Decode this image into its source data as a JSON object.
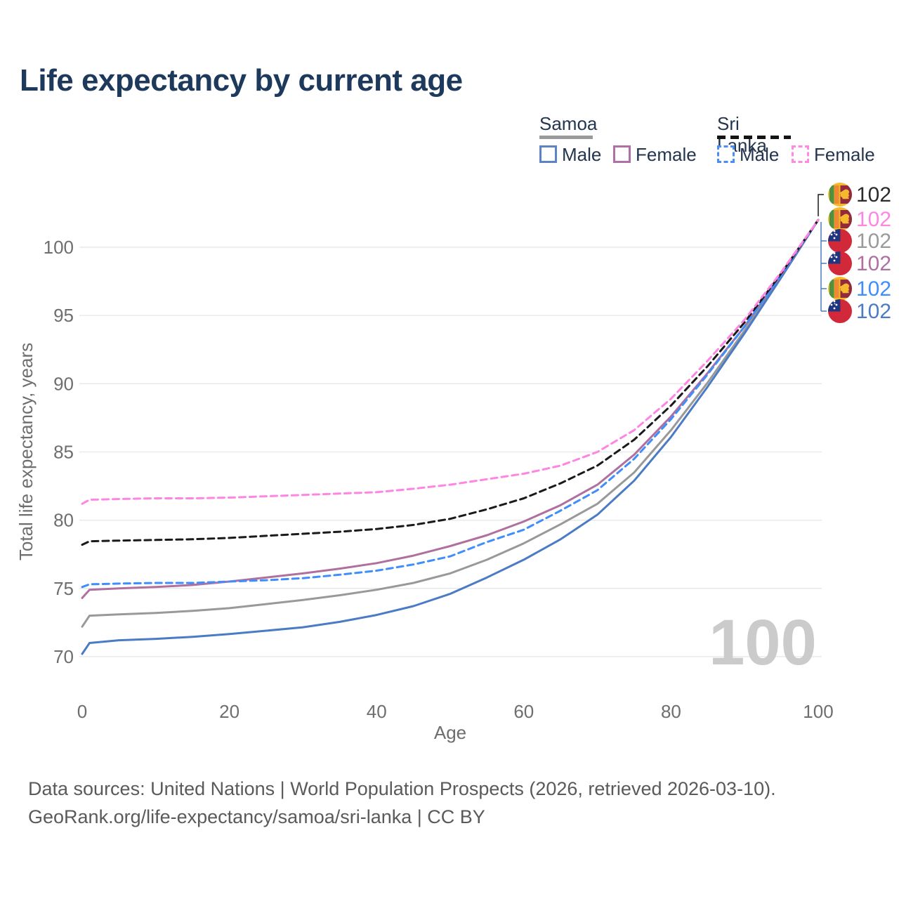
{
  "header": {
    "title": "Life expectancy by current age"
  },
  "legend": {
    "samoa": {
      "label": "Samoa",
      "male_label": "Male",
      "female_label": "Female"
    },
    "sri_lanka": {
      "label": "Sri Lanka",
      "male_label": "Male",
      "female_label": "Female"
    }
  },
  "colors": {
    "title": "#1d3a5c",
    "axis_text": "#6e6e6e",
    "grid": "#e9e9e9",
    "watermark": "#cbcbcb",
    "samoa_male": "#4a7bc4",
    "samoa_female": "#b0709f",
    "samoa_all": "#999999",
    "sri_lanka_male": "#3f8efc",
    "sri_lanka_female": "#ff85e3",
    "sri_lanka_all": "#1a1a1a"
  },
  "chart_data": {
    "type": "line",
    "title": "Life expectancy by current age",
    "xlabel": "Age",
    "ylabel": "Total life expectancy, years",
    "xlim": [
      0,
      100
    ],
    "ylim": [
      70,
      102
    ],
    "xticks": [
      0,
      20,
      40,
      60,
      80,
      100
    ],
    "yticks": [
      70,
      75,
      80,
      85,
      90,
      95,
      100
    ],
    "grid": true,
    "legend_position": "top-right",
    "watermark": "100",
    "ages": [
      0,
      1,
      5,
      10,
      15,
      20,
      25,
      30,
      35,
      40,
      45,
      50,
      55,
      60,
      65,
      70,
      75,
      80,
      85,
      90,
      95,
      100
    ],
    "series": [
      {
        "id": "samoa-all",
        "name": "Samoa (both sexes)",
        "country": "Samoa",
        "sex": "All",
        "style": "solid",
        "color": "#999999",
        "values": [
          72.2,
          73.0,
          73.1,
          73.2,
          73.35,
          73.55,
          73.85,
          74.15,
          74.5,
          74.9,
          75.4,
          76.1,
          77.1,
          78.3,
          79.7,
          81.2,
          83.5,
          86.6,
          90.1,
          93.9,
          97.9,
          102
        ]
      },
      {
        "id": "samoa-male",
        "name": "Samoa Male",
        "country": "Samoa",
        "sex": "Male",
        "style": "solid",
        "color": "#4a7bc4",
        "values": [
          70.2,
          71.0,
          71.2,
          71.3,
          71.45,
          71.65,
          71.9,
          72.15,
          72.55,
          73.05,
          73.7,
          74.6,
          75.8,
          77.1,
          78.6,
          80.4,
          82.9,
          86.1,
          89.8,
          93.7,
          97.8,
          102
        ]
      },
      {
        "id": "samoa-female",
        "name": "Samoa Female",
        "country": "Samoa",
        "sex": "Female",
        "style": "solid",
        "color": "#b0709f",
        "values": [
          74.3,
          74.9,
          75.0,
          75.1,
          75.25,
          75.5,
          75.8,
          76.1,
          76.45,
          76.85,
          77.4,
          78.1,
          78.9,
          79.9,
          81.1,
          82.6,
          84.8,
          87.6,
          90.8,
          94.2,
          98.0,
          102
        ]
      },
      {
        "id": "sri-lanka-male",
        "name": "Sri Lanka Male",
        "country": "Sri Lanka",
        "sex": "Male",
        "style": "dashed",
        "color": "#3f8efc",
        "values": [
          75.1,
          75.3,
          75.35,
          75.4,
          75.4,
          75.5,
          75.6,
          75.75,
          76.0,
          76.3,
          76.75,
          77.35,
          78.4,
          79.3,
          80.7,
          82.2,
          84.5,
          87.4,
          90.7,
          94.2,
          98.0,
          102
        ]
      },
      {
        "id": "sri-lanka-all",
        "name": "Sri Lanka (both sexes)",
        "country": "Sri Lanka",
        "sex": "All",
        "style": "dashed",
        "color": "#1a1a1a",
        "values": [
          78.2,
          78.45,
          78.5,
          78.55,
          78.6,
          78.7,
          78.85,
          79.0,
          79.15,
          79.35,
          79.65,
          80.1,
          80.8,
          81.6,
          82.7,
          84.0,
          85.9,
          88.4,
          91.3,
          94.5,
          98.1,
          102
        ]
      },
      {
        "id": "sri-lanka-female",
        "name": "Sri Lanka Female",
        "country": "Sri Lanka",
        "sex": "Female",
        "style": "dashed",
        "color": "#ff85e3",
        "values": [
          81.2,
          81.5,
          81.55,
          81.6,
          81.6,
          81.65,
          81.75,
          81.85,
          81.95,
          82.05,
          82.3,
          82.6,
          83.0,
          83.4,
          84.0,
          85.0,
          86.6,
          88.9,
          91.7,
          94.7,
          98.2,
          102
        ]
      }
    ],
    "end_labels": [
      {
        "flag": "sri-lanka",
        "text": "102",
        "color": "#2b2b2b"
      },
      {
        "flag": "sri-lanka",
        "text": "102",
        "color": "#ff85e3"
      },
      {
        "flag": "samoa",
        "text": "102",
        "color": "#9a9a9a"
      },
      {
        "flag": "samoa",
        "text": "102",
        "color": "#b0709f"
      },
      {
        "flag": "sri-lanka",
        "text": "102",
        "color": "#3f8efc"
      },
      {
        "flag": "samoa",
        "text": "102",
        "color": "#4a7bc4"
      }
    ]
  },
  "footer": {
    "line1": "Data sources: United Nations | World Population Prospects (2026, retrieved 2026-03-10).",
    "line2": "GeoRank.org/life-expectancy/samoa/sri-lanka | CC BY"
  }
}
